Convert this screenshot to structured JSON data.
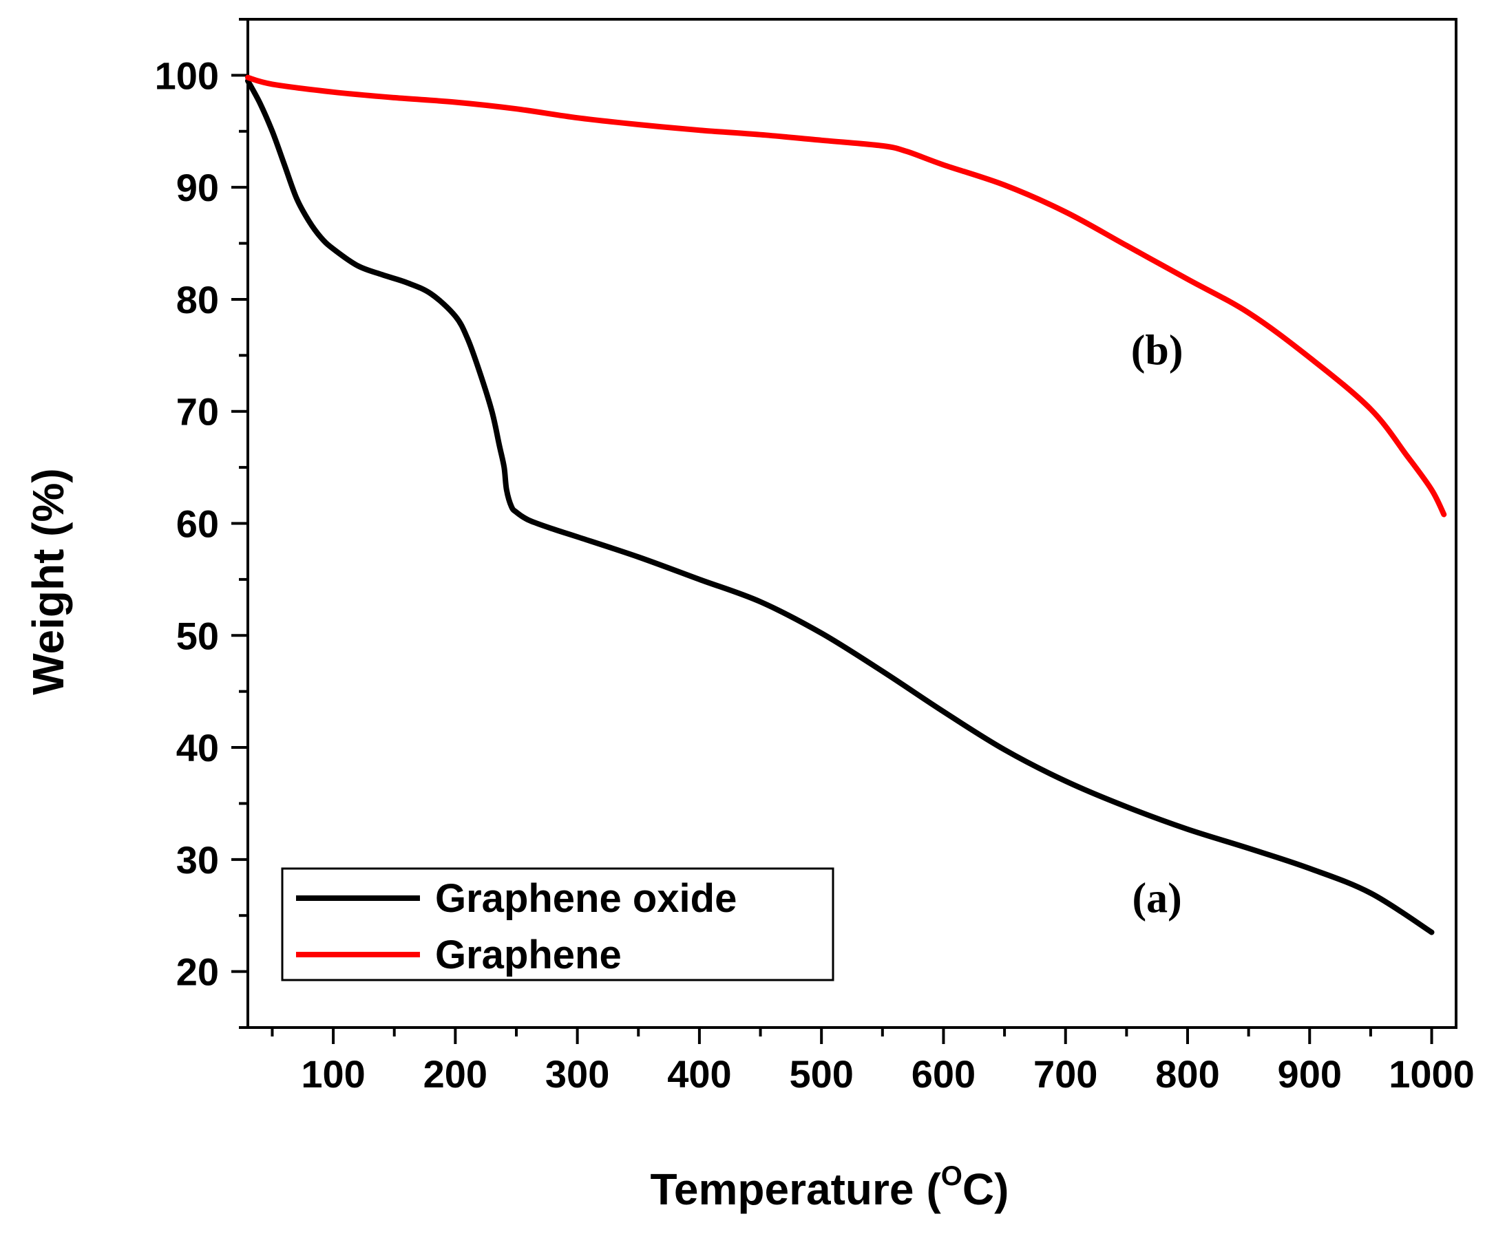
{
  "chart_data": {
    "type": "line",
    "title": "",
    "xlabel": "Temperature",
    "xlabel_unit_open": "(",
    "xlabel_unit_sup": "O",
    "xlabel_unit_close": "C)",
    "ylabel": "Weight (%)",
    "xlim": [
      30,
      1020
    ],
    "ylim": [
      15,
      105
    ],
    "xticks": [
      100,
      200,
      300,
      400,
      500,
      600,
      700,
      800,
      900,
      1000
    ],
    "yticks": [
      20,
      30,
      40,
      50,
      60,
      70,
      80,
      90,
      100
    ],
    "grid": false,
    "legend_position": "bottom-left",
    "series": [
      {
        "name": "Graphene oxide",
        "color": "#000000",
        "annotation": "(a)",
        "x": [
          30,
          40,
          50,
          60,
          70,
          80,
          90,
          100,
          120,
          140,
          160,
          180,
          200,
          210,
          220,
          230,
          236,
          240,
          242,
          246,
          250,
          260,
          280,
          300,
          350,
          400,
          450,
          500,
          550,
          600,
          650,
          700,
          750,
          800,
          850,
          900,
          950,
          1000
        ],
        "y": [
          99.5,
          97.5,
          95,
          92,
          89,
          87,
          85.5,
          84.5,
          83,
          82.2,
          81.5,
          80.5,
          78.5,
          76.5,
          73.5,
          70,
          67,
          65,
          63,
          61.5,
          61,
          60.3,
          59.5,
          58.8,
          57,
          55,
          53,
          50.2,
          46.8,
          43.2,
          39.8,
          37,
          34.7,
          32.7,
          31,
          29.2,
          27,
          23.5
        ]
      },
      {
        "name": "Graphene",
        "color": "#ff0000",
        "annotation": "(b)",
        "x": [
          30,
          50,
          100,
          150,
          200,
          250,
          300,
          350,
          400,
          450,
          500,
          550,
          570,
          600,
          650,
          700,
          750,
          800,
          850,
          900,
          950,
          980,
          1000,
          1010
        ],
        "y": [
          99.8,
          99.2,
          98.5,
          98,
          97.6,
          97,
          96.2,
          95.6,
          95.1,
          94.7,
          94.2,
          93.7,
          93.2,
          92,
          90.2,
          87.8,
          84.8,
          81.8,
          78.8,
          74.8,
          70.2,
          66,
          63,
          60.8
        ]
      }
    ]
  }
}
